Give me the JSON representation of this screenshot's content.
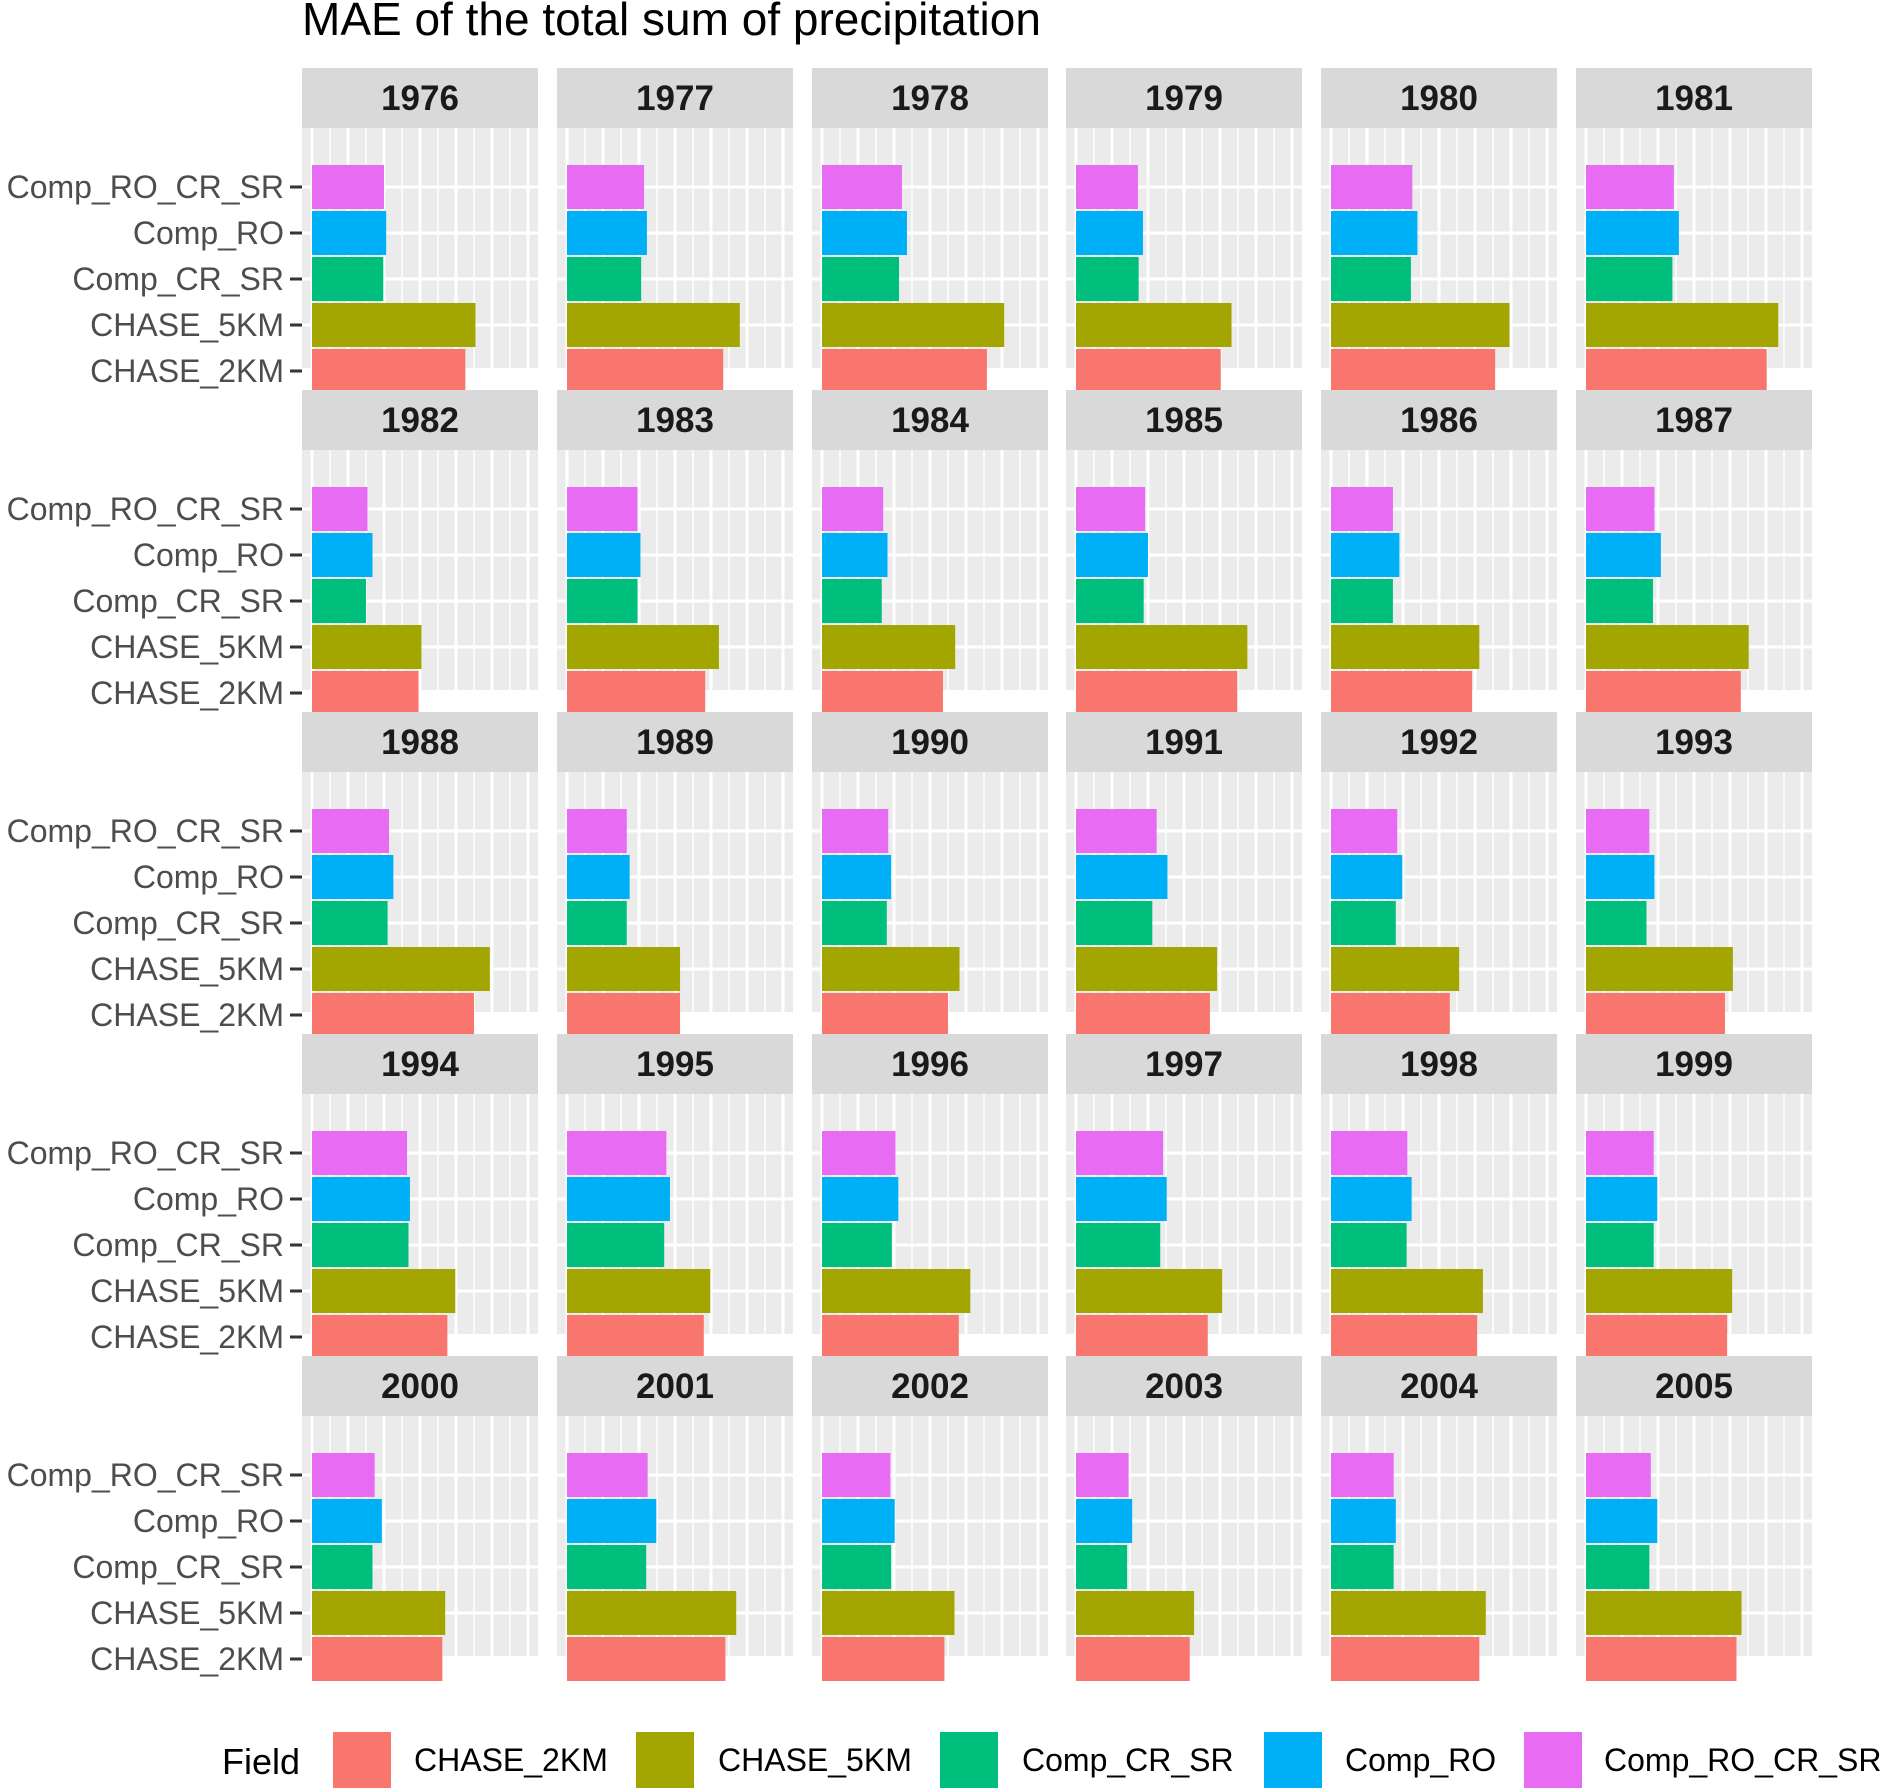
{
  "chart_data": {
    "type": "bar",
    "orientation": "horizontal",
    "title": "MAE of the total sum of precipitation",
    "facet_layout": "6 columns x 5 rows",
    "categories": [
      "CHASE_2KM",
      "CHASE_5KM",
      "Comp_CR_SR",
      "Comp_RO",
      "Comp_RO_CR_SR"
    ],
    "xlim": [
      0,
      3.2
    ],
    "x_gridlines": [
      0,
      0.5,
      1,
      1.5,
      2,
      2.5,
      3
    ],
    "x_tick_labels": "none",
    "grid": true,
    "legend": {
      "title": "Field",
      "position": "bottom",
      "entries": [
        "CHASE_2KM",
        "CHASE_5KM",
        "Comp_CR_SR",
        "Comp_RO",
        "Comp_RO_CR_SR"
      ]
    },
    "colors": {
      "CHASE_2KM": "#F8766D",
      "CHASE_5KM": "#A3A500",
      "Comp_CR_SR": "#00BF7D",
      "Comp_RO": "#00B0F6",
      "Comp_RO_CR_SR": "#E76BF3"
    },
    "panels": [
      {
        "label": "1976",
        "values": [
          2.13,
          2.27,
          0.99,
          1.03,
          1.0
        ]
      },
      {
        "label": "1977",
        "values": [
          2.17,
          2.4,
          1.03,
          1.11,
          1.07
        ]
      },
      {
        "label": "1978",
        "values": [
          2.29,
          2.53,
          1.07,
          1.18,
          1.11
        ]
      },
      {
        "label": "1979",
        "values": [
          2.01,
          2.16,
          0.87,
          0.93,
          0.86
        ]
      },
      {
        "label": "1980",
        "values": [
          2.28,
          2.48,
          1.11,
          1.2,
          1.13
        ]
      },
      {
        "label": "1981",
        "values": [
          2.51,
          2.67,
          1.2,
          1.29,
          1.22
        ]
      },
      {
        "label": "1982",
        "values": [
          1.48,
          1.52,
          0.75,
          0.84,
          0.77
        ]
      },
      {
        "label": "1983",
        "values": [
          1.92,
          2.11,
          0.98,
          1.02,
          0.98
        ]
      },
      {
        "label": "1984",
        "values": [
          1.68,
          1.85,
          0.83,
          0.91,
          0.85
        ]
      },
      {
        "label": "1985",
        "values": [
          2.24,
          2.38,
          0.94,
          1.0,
          0.96
        ]
      },
      {
        "label": "1986",
        "values": [
          1.96,
          2.06,
          0.86,
          0.95,
          0.86
        ]
      },
      {
        "label": "1987",
        "values": [
          2.15,
          2.26,
          0.93,
          1.04,
          0.95
        ]
      },
      {
        "label": "1988",
        "values": [
          2.25,
          2.47,
          1.05,
          1.13,
          1.07
        ]
      },
      {
        "label": "1989",
        "values": [
          1.57,
          1.57,
          0.83,
          0.87,
          0.83
        ]
      },
      {
        "label": "1990",
        "values": [
          1.75,
          1.91,
          0.9,
          0.96,
          0.92
        ]
      },
      {
        "label": "1991",
        "values": [
          1.86,
          1.96,
          1.06,
          1.27,
          1.12
        ]
      },
      {
        "label": "1992",
        "values": [
          1.65,
          1.78,
          0.9,
          0.99,
          0.92
        ]
      },
      {
        "label": "1993",
        "values": [
          1.93,
          2.04,
          0.84,
          0.95,
          0.88
        ]
      },
      {
        "label": "1994",
        "values": [
          1.88,
          1.99,
          1.34,
          1.36,
          1.32
        ]
      },
      {
        "label": "1995",
        "values": [
          1.9,
          1.99,
          1.35,
          1.43,
          1.38
        ]
      },
      {
        "label": "1996",
        "values": [
          1.9,
          2.06,
          0.97,
          1.06,
          1.02
        ]
      },
      {
        "label": "1997",
        "values": [
          1.83,
          2.03,
          1.17,
          1.26,
          1.21
        ]
      },
      {
        "label": "1998",
        "values": [
          2.03,
          2.11,
          1.05,
          1.12,
          1.06
        ]
      },
      {
        "label": "1999",
        "values": [
          1.96,
          2.03,
          0.94,
          0.99,
          0.94
        ]
      },
      {
        "label": "2000",
        "values": [
          1.81,
          1.85,
          0.84,
          0.97,
          0.87
        ]
      },
      {
        "label": "2001",
        "values": [
          2.2,
          2.35,
          1.1,
          1.24,
          1.12
        ]
      },
      {
        "label": "2002",
        "values": [
          1.7,
          1.84,
          0.96,
          1.01,
          0.95
        ]
      },
      {
        "label": "2003",
        "values": [
          1.58,
          1.64,
          0.71,
          0.78,
          0.73
        ]
      },
      {
        "label": "2004",
        "values": [
          2.06,
          2.15,
          0.87,
          0.9,
          0.87
        ]
      },
      {
        "label": "2005",
        "values": [
          2.09,
          2.16,
          0.88,
          0.99,
          0.9
        ]
      }
    ]
  }
}
